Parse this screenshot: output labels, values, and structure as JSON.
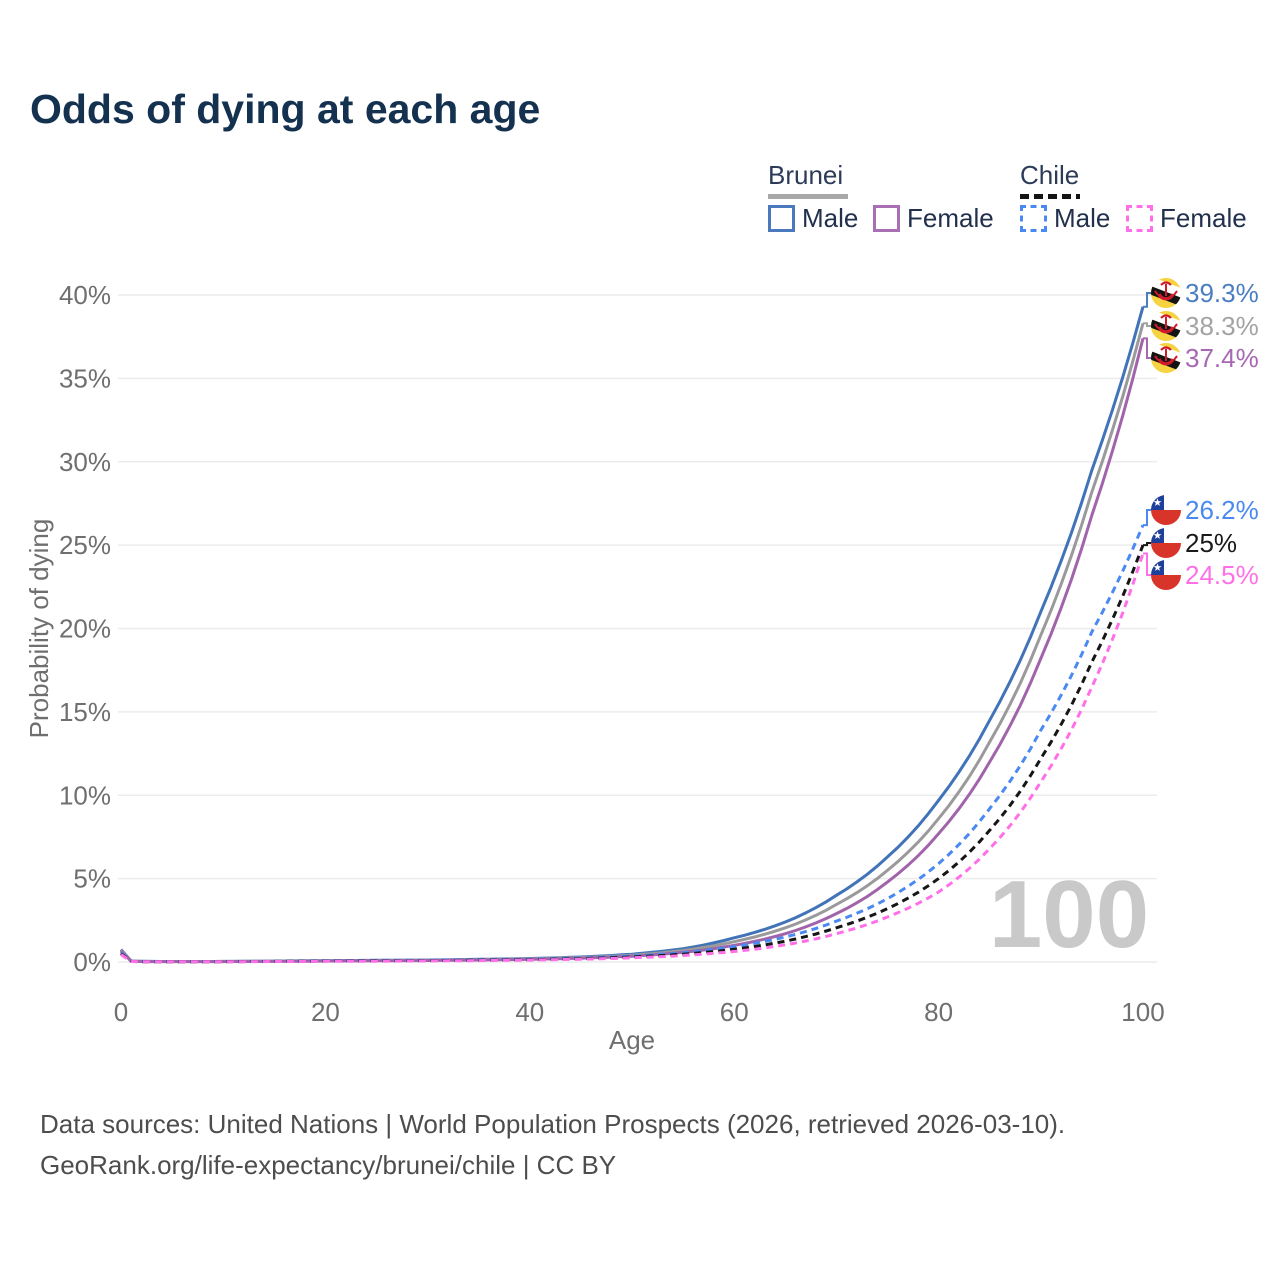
{
  "title": "Odds of dying at each age",
  "legend": {
    "groups": [
      {
        "country": "Brunei",
        "style": "solid",
        "underline_color": "#a8a8a8",
        "items": [
          {
            "label": "Male",
            "color": "#4a7abd"
          },
          {
            "label": "Female",
            "color": "#a86fb4"
          }
        ]
      },
      {
        "country": "Chile",
        "style": "dashed",
        "underline_color": "#141414",
        "items": [
          {
            "label": "Male",
            "color": "#4b89f2"
          },
          {
            "label": "Female",
            "color": "#ff70e8"
          }
        ]
      }
    ]
  },
  "chart_data": {
    "type": "line",
    "title": "Odds of dying at each age",
    "xlabel": "Age",
    "ylabel": "Probability of dying",
    "xlim": [
      0,
      100
    ],
    "ylim": [
      0,
      40
    ],
    "x_ticks": [
      "0",
      "20",
      "40",
      "60",
      "80",
      "100"
    ],
    "x_tick_values": [
      0,
      20,
      40,
      60,
      80,
      100
    ],
    "y_ticks": [
      "0%",
      "5%",
      "10%",
      "15%",
      "20%",
      "25%",
      "30%",
      "35%",
      "40%"
    ],
    "y_tick_values": [
      0,
      5,
      10,
      15,
      20,
      25,
      30,
      35,
      40
    ],
    "grid": "horizontal",
    "age_watermark": "100",
    "unit": "percent",
    "series": [
      {
        "id": "brunei-male",
        "name": "Brunei Male",
        "country": "Brunei",
        "style": "solid",
        "color": "#4173b8",
        "label_color": "#4a7ec1",
        "end_label": "39.3%",
        "end_value": 39.3,
        "flag": "brunei",
        "points": [
          [
            0,
            0.75
          ],
          [
            1,
            0.055
          ],
          [
            2,
            0.04
          ],
          [
            4,
            0.03
          ],
          [
            8,
            0.03
          ],
          [
            12,
            0.04
          ],
          [
            16,
            0.06
          ],
          [
            20,
            0.08
          ],
          [
            25,
            0.1
          ],
          [
            30,
            0.12
          ],
          [
            35,
            0.16
          ],
          [
            40,
            0.21
          ],
          [
            45,
            0.3
          ],
          [
            50,
            0.47
          ],
          [
            55,
            0.8
          ],
          [
            60,
            1.45
          ],
          [
            65,
            2.4
          ],
          [
            70,
            4.0
          ],
          [
            75,
            6.3
          ],
          [
            80,
            9.7
          ],
          [
            85,
            14.5
          ],
          [
            90,
            21.0
          ],
          [
            95,
            29.5
          ],
          [
            100,
            39.3
          ]
        ]
      },
      {
        "id": "brunei-both",
        "name": "Brunei",
        "country": "Brunei",
        "style": "solid",
        "color": "#9a9a9a",
        "label_color": "#a3a3a3",
        "end_label": "38.3%",
        "end_value": 38.3,
        "flag": "brunei",
        "points": [
          [
            0,
            0.7
          ],
          [
            1,
            0.05
          ],
          [
            2,
            0.035
          ],
          [
            4,
            0.027
          ],
          [
            8,
            0.027
          ],
          [
            12,
            0.036
          ],
          [
            16,
            0.05
          ],
          [
            20,
            0.07
          ],
          [
            25,
            0.09
          ],
          [
            30,
            0.11
          ],
          [
            35,
            0.14
          ],
          [
            40,
            0.19
          ],
          [
            45,
            0.27
          ],
          [
            50,
            0.41
          ],
          [
            55,
            0.69
          ],
          [
            60,
            1.22
          ],
          [
            65,
            2.05
          ],
          [
            70,
            3.45
          ],
          [
            75,
            5.5
          ],
          [
            80,
            8.6
          ],
          [
            85,
            13.2
          ],
          [
            90,
            19.6
          ],
          [
            95,
            28.2
          ],
          [
            100,
            38.3
          ]
        ]
      },
      {
        "id": "brunei-female",
        "name": "Brunei Female",
        "country": "Brunei",
        "style": "solid",
        "color": "#a164ab",
        "label_color": "#a767b2",
        "end_label": "37.4%",
        "end_value": 37.4,
        "flag": "brunei",
        "points": [
          [
            0,
            0.65
          ],
          [
            1,
            0.045
          ],
          [
            2,
            0.03
          ],
          [
            4,
            0.024
          ],
          [
            8,
            0.024
          ],
          [
            12,
            0.03
          ],
          [
            16,
            0.042
          ],
          [
            20,
            0.06
          ],
          [
            25,
            0.075
          ],
          [
            30,
            0.09
          ],
          [
            35,
            0.12
          ],
          [
            40,
            0.16
          ],
          [
            45,
            0.23
          ],
          [
            50,
            0.35
          ],
          [
            55,
            0.58
          ],
          [
            60,
            1.0
          ],
          [
            65,
            1.7
          ],
          [
            70,
            2.9
          ],
          [
            75,
            4.8
          ],
          [
            80,
            7.7
          ],
          [
            85,
            12.0
          ],
          [
            90,
            18.2
          ],
          [
            95,
            26.8
          ],
          [
            100,
            37.4
          ]
        ]
      },
      {
        "id": "chile-male",
        "name": "Chile Male",
        "country": "Chile",
        "style": "dashed",
        "color": "#4b89f2",
        "label_color": "#4b89f2",
        "end_label": "26.2%",
        "end_value": 26.2,
        "flag": "chile",
        "points": [
          [
            0,
            0.55
          ],
          [
            1,
            0.04
          ],
          [
            2,
            0.025
          ],
          [
            4,
            0.02
          ],
          [
            8,
            0.02
          ],
          [
            12,
            0.03
          ],
          [
            16,
            0.05
          ],
          [
            20,
            0.07
          ],
          [
            25,
            0.09
          ],
          [
            30,
            0.11
          ],
          [
            35,
            0.13
          ],
          [
            40,
            0.17
          ],
          [
            45,
            0.24
          ],
          [
            50,
            0.36
          ],
          [
            55,
            0.56
          ],
          [
            60,
            0.92
          ],
          [
            65,
            1.5
          ],
          [
            70,
            2.45
          ],
          [
            75,
            3.8
          ],
          [
            80,
            5.9
          ],
          [
            85,
            9.2
          ],
          [
            90,
            13.9
          ],
          [
            95,
            19.8
          ],
          [
            100,
            26.2
          ]
        ]
      },
      {
        "id": "chile-both",
        "name": "Chile",
        "country": "Chile",
        "style": "dashed",
        "color": "#161616",
        "label_color": "#1a1a1a",
        "end_label": "25%",
        "end_value": 25.0,
        "flag": "chile",
        "points": [
          [
            0,
            0.5
          ],
          [
            1,
            0.035
          ],
          [
            2,
            0.02
          ],
          [
            4,
            0.017
          ],
          [
            8,
            0.017
          ],
          [
            12,
            0.025
          ],
          [
            16,
            0.04
          ],
          [
            20,
            0.055
          ],
          [
            25,
            0.07
          ],
          [
            30,
            0.085
          ],
          [
            35,
            0.105
          ],
          [
            40,
            0.14
          ],
          [
            45,
            0.2
          ],
          [
            50,
            0.3
          ],
          [
            55,
            0.47
          ],
          [
            60,
            0.76
          ],
          [
            65,
            1.25
          ],
          [
            70,
            2.05
          ],
          [
            75,
            3.2
          ],
          [
            80,
            5.0
          ],
          [
            85,
            7.9
          ],
          [
            90,
            12.2
          ],
          [
            95,
            18.0
          ],
          [
            100,
            25.0
          ]
        ]
      },
      {
        "id": "chile-female",
        "name": "Chile Female",
        "country": "Chile",
        "style": "dashed",
        "color": "#ff70e8",
        "label_color": "#ff70e8",
        "end_label": "24.5%",
        "end_value": 24.5,
        "flag": "chile",
        "points": [
          [
            0,
            0.45
          ],
          [
            1,
            0.03
          ],
          [
            2,
            0.018
          ],
          [
            4,
            0.014
          ],
          [
            8,
            0.014
          ],
          [
            12,
            0.02
          ],
          [
            16,
            0.03
          ],
          [
            20,
            0.04
          ],
          [
            25,
            0.05
          ],
          [
            30,
            0.065
          ],
          [
            35,
            0.085
          ],
          [
            40,
            0.115
          ],
          [
            45,
            0.165
          ],
          [
            50,
            0.25
          ],
          [
            55,
            0.39
          ],
          [
            60,
            0.63
          ],
          [
            65,
            1.03
          ],
          [
            70,
            1.7
          ],
          [
            75,
            2.7
          ],
          [
            80,
            4.2
          ],
          [
            85,
            6.8
          ],
          [
            90,
            10.8
          ],
          [
            95,
            16.5
          ],
          [
            100,
            24.5
          ]
        ]
      }
    ]
  },
  "footer": {
    "line1": "Data sources: United Nations | World Population Prospects (2026, retrieved 2026-03-10).",
    "line2": "GeoRank.org/life-expectancy/brunei/chile | CC BY"
  }
}
